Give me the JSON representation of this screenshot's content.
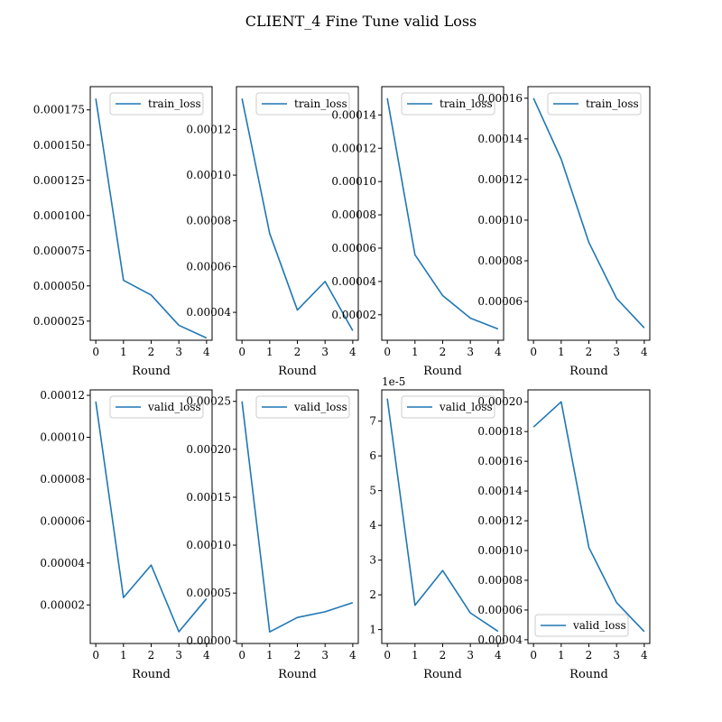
{
  "figure": {
    "title": "CLIENT_4 Fine Tune valid Loss"
  },
  "chart_data": [
    {
      "type": "line",
      "xlabel": "Round",
      "x": [
        0,
        1,
        2,
        3,
        4
      ],
      "xlim": [
        -0.2,
        4.2
      ],
      "xticks": [
        "0",
        "1",
        "2",
        "3",
        "4"
      ],
      "ylim": [
        1.14e-05,
        0.0001915
      ],
      "yticks": [
        {
          "v": 2.5e-05,
          "label": "0.000025"
        },
        {
          "v": 5e-05,
          "label": "0.000050"
        },
        {
          "v": 7.5e-05,
          "label": "0.000075"
        },
        {
          "v": 0.0001,
          "label": "0.000100"
        },
        {
          "v": 0.000125,
          "label": "0.000125"
        },
        {
          "v": 0.00015,
          "label": "0.000150"
        },
        {
          "v": 0.000175,
          "label": "0.000175"
        }
      ],
      "series": [
        {
          "name": "train_loss",
          "color": "#1f77b4",
          "values": [
            0.000183,
            5.4e-05,
            4.35e-05,
            2.2e-05,
            1.3e-05
          ]
        }
      ],
      "legend": "upper right"
    },
    {
      "type": "line",
      "xlabel": "Round",
      "x": [
        0,
        1,
        2,
        3,
        4
      ],
      "xlim": [
        -0.2,
        4.2
      ],
      "xticks": [
        "0",
        "1",
        "2",
        "3",
        "4"
      ],
      "ylim": [
        2.78e-05,
        0.0001387
      ],
      "yticks": [
        {
          "v": 4e-05,
          "label": "0.00004"
        },
        {
          "v": 6e-05,
          "label": "0.00006"
        },
        {
          "v": 8e-05,
          "label": "0.00008"
        },
        {
          "v": 0.0001,
          "label": "0.00010"
        },
        {
          "v": 0.00012,
          "label": "0.00012"
        }
      ],
      "series": [
        {
          "name": "train_loss",
          "color": "#1f77b4",
          "values": [
            0.0001335,
            7.45e-05,
            4.1e-05,
            5.35e-05,
            3.2e-05
          ]
        }
      ],
      "legend": "upper right"
    },
    {
      "type": "line",
      "xlabel": "Round",
      "x": [
        0,
        1,
        2,
        3,
        4
      ],
      "xlim": [
        -0.2,
        4.2
      ],
      "xticks": [
        "0",
        "1",
        "2",
        "3",
        "4"
      ],
      "ylim": [
        4.7e-06,
        0.000157
      ],
      "yticks": [
        {
          "v": 2e-05,
          "label": "0.00002"
        },
        {
          "v": 4e-05,
          "label": "0.00004"
        },
        {
          "v": 6e-05,
          "label": "0.00006"
        },
        {
          "v": 8e-05,
          "label": "0.00008"
        },
        {
          "v": 0.0001,
          "label": "0.00010"
        },
        {
          "v": 0.00012,
          "label": "0.00012"
        },
        {
          "v": 0.00014,
          "label": "0.00014"
        }
      ],
      "series": [
        {
          "name": "train_loss",
          "color": "#1f77b4",
          "values": [
            0.00015,
            5.6e-05,
            3.15e-05,
            1.8e-05,
            1.15e-05
          ]
        }
      ],
      "legend": "upper right"
    },
    {
      "type": "line",
      "xlabel": "Round",
      "x": [
        0,
        1,
        2,
        3,
        4
      ],
      "xlim": [
        -0.2,
        4.2
      ],
      "xticks": [
        "0",
        "1",
        "2",
        "3",
        "4"
      ],
      "ylim": [
        4.09e-05,
        0.0001657
      ],
      "yticks": [
        {
          "v": 6e-05,
          "label": "0.00006"
        },
        {
          "v": 8e-05,
          "label": "0.00008"
        },
        {
          "v": 0.0001,
          "label": "0.00010"
        },
        {
          "v": 0.00012,
          "label": "0.00012"
        },
        {
          "v": 0.00014,
          "label": "0.00014"
        },
        {
          "v": 0.00016,
          "label": "0.00016"
        }
      ],
      "series": [
        {
          "name": "train_loss",
          "color": "#1f77b4",
          "values": [
            0.00016,
            0.00013,
            8.9e-05,
            6.15e-05,
            4.7e-05
          ]
        }
      ],
      "legend": "upper right"
    },
    {
      "type": "line",
      "xlabel": "Round",
      "x": [
        0,
        1,
        2,
        3,
        4
      ],
      "xlim": [
        -0.2,
        4.2
      ],
      "xticks": [
        "0",
        "1",
        "2",
        "3",
        "4"
      ],
      "ylim": [
        1.6e-06,
        0.0001226
      ],
      "yticks": [
        {
          "v": 2e-05,
          "label": "0.00002"
        },
        {
          "v": 4e-05,
          "label": "0.00004"
        },
        {
          "v": 6e-05,
          "label": "0.00006"
        },
        {
          "v": 8e-05,
          "label": "0.00008"
        },
        {
          "v": 0.0001,
          "label": "0.00010"
        },
        {
          "v": 0.00012,
          "label": "0.00012"
        }
      ],
      "series": [
        {
          "name": "valid_loss",
          "color": "#1f77b4",
          "values": [
            0.000117,
            2.35e-05,
            3.9e-05,
            7.2e-06,
            2.3e-05
          ]
        }
      ],
      "legend": "upper right"
    },
    {
      "type": "line",
      "xlabel": "Round",
      "x": [
        0,
        1,
        2,
        3,
        4
      ],
      "xlim": [
        -0.2,
        4.2
      ],
      "xticks": [
        "0",
        "1",
        "2",
        "3",
        "4"
      ],
      "ylim": [
        -2.6e-06,
        0.000262
      ],
      "yticks": [
        {
          "v": 0,
          "label": "0.00000"
        },
        {
          "v": 5e-05,
          "label": "0.00005"
        },
        {
          "v": 0.0001,
          "label": "0.00010"
        },
        {
          "v": 0.00015,
          "label": "0.00015"
        },
        {
          "v": 0.0002,
          "label": "0.00020"
        },
        {
          "v": 0.00025,
          "label": "0.00025"
        }
      ],
      "series": [
        {
          "name": "valid_loss",
          "color": "#1f77b4",
          "values": [
            0.00025,
            9.5e-06,
            2.45e-05,
            3.05e-05,
            4e-05
          ]
        }
      ],
      "legend": "upper right"
    },
    {
      "type": "line",
      "xlabel": "Round",
      "x": [
        0,
        1,
        2,
        3,
        4
      ],
      "xlim": [
        -0.2,
        4.2
      ],
      "xticks": [
        "0",
        "1",
        "2",
        "3",
        "4"
      ],
      "ylim": [
        0.6,
        7.9
      ],
      "yticks": [
        {
          "v": 1,
          "label": "1"
        },
        {
          "v": 2,
          "label": "2"
        },
        {
          "v": 3,
          "label": "3"
        },
        {
          "v": 4,
          "label": "4"
        },
        {
          "v": 5,
          "label": "5"
        },
        {
          "v": 6,
          "label": "6"
        },
        {
          "v": 7,
          "label": "7"
        }
      ],
      "offset_label": "1e-5",
      "series": [
        {
          "name": "valid_loss",
          "color": "#1f77b4",
          "values": [
            7.65,
            1.7,
            2.7,
            1.48,
            0.95
          ]
        }
      ],
      "legend": "upper right"
    },
    {
      "type": "line",
      "xlabel": "Round",
      "x": [
        0,
        1,
        2,
        3,
        4
      ],
      "xlim": [
        -0.2,
        4.2
      ],
      "xticks": [
        "0",
        "1",
        "2",
        "3",
        "4"
      ],
      "ylim": [
        3.75e-05,
        0.000208
      ],
      "yticks": [
        {
          "v": 4e-05,
          "label": "0.00004"
        },
        {
          "v": 6e-05,
          "label": "0.00006"
        },
        {
          "v": 8e-05,
          "label": "0.00008"
        },
        {
          "v": 0.0001,
          "label": "0.00010"
        },
        {
          "v": 0.00012,
          "label": "0.00012"
        },
        {
          "v": 0.00014,
          "label": "0.00014"
        },
        {
          "v": 0.00016,
          "label": "0.00016"
        },
        {
          "v": 0.00018,
          "label": "0.00018"
        },
        {
          "v": 0.0002,
          "label": "0.00020"
        }
      ],
      "series": [
        {
          "name": "valid_loss",
          "color": "#1f77b4",
          "values": [
            0.000183,
            0.0002,
            0.000102,
            6.5e-05,
            4.55e-05
          ]
        }
      ],
      "legend": "lower left"
    }
  ]
}
